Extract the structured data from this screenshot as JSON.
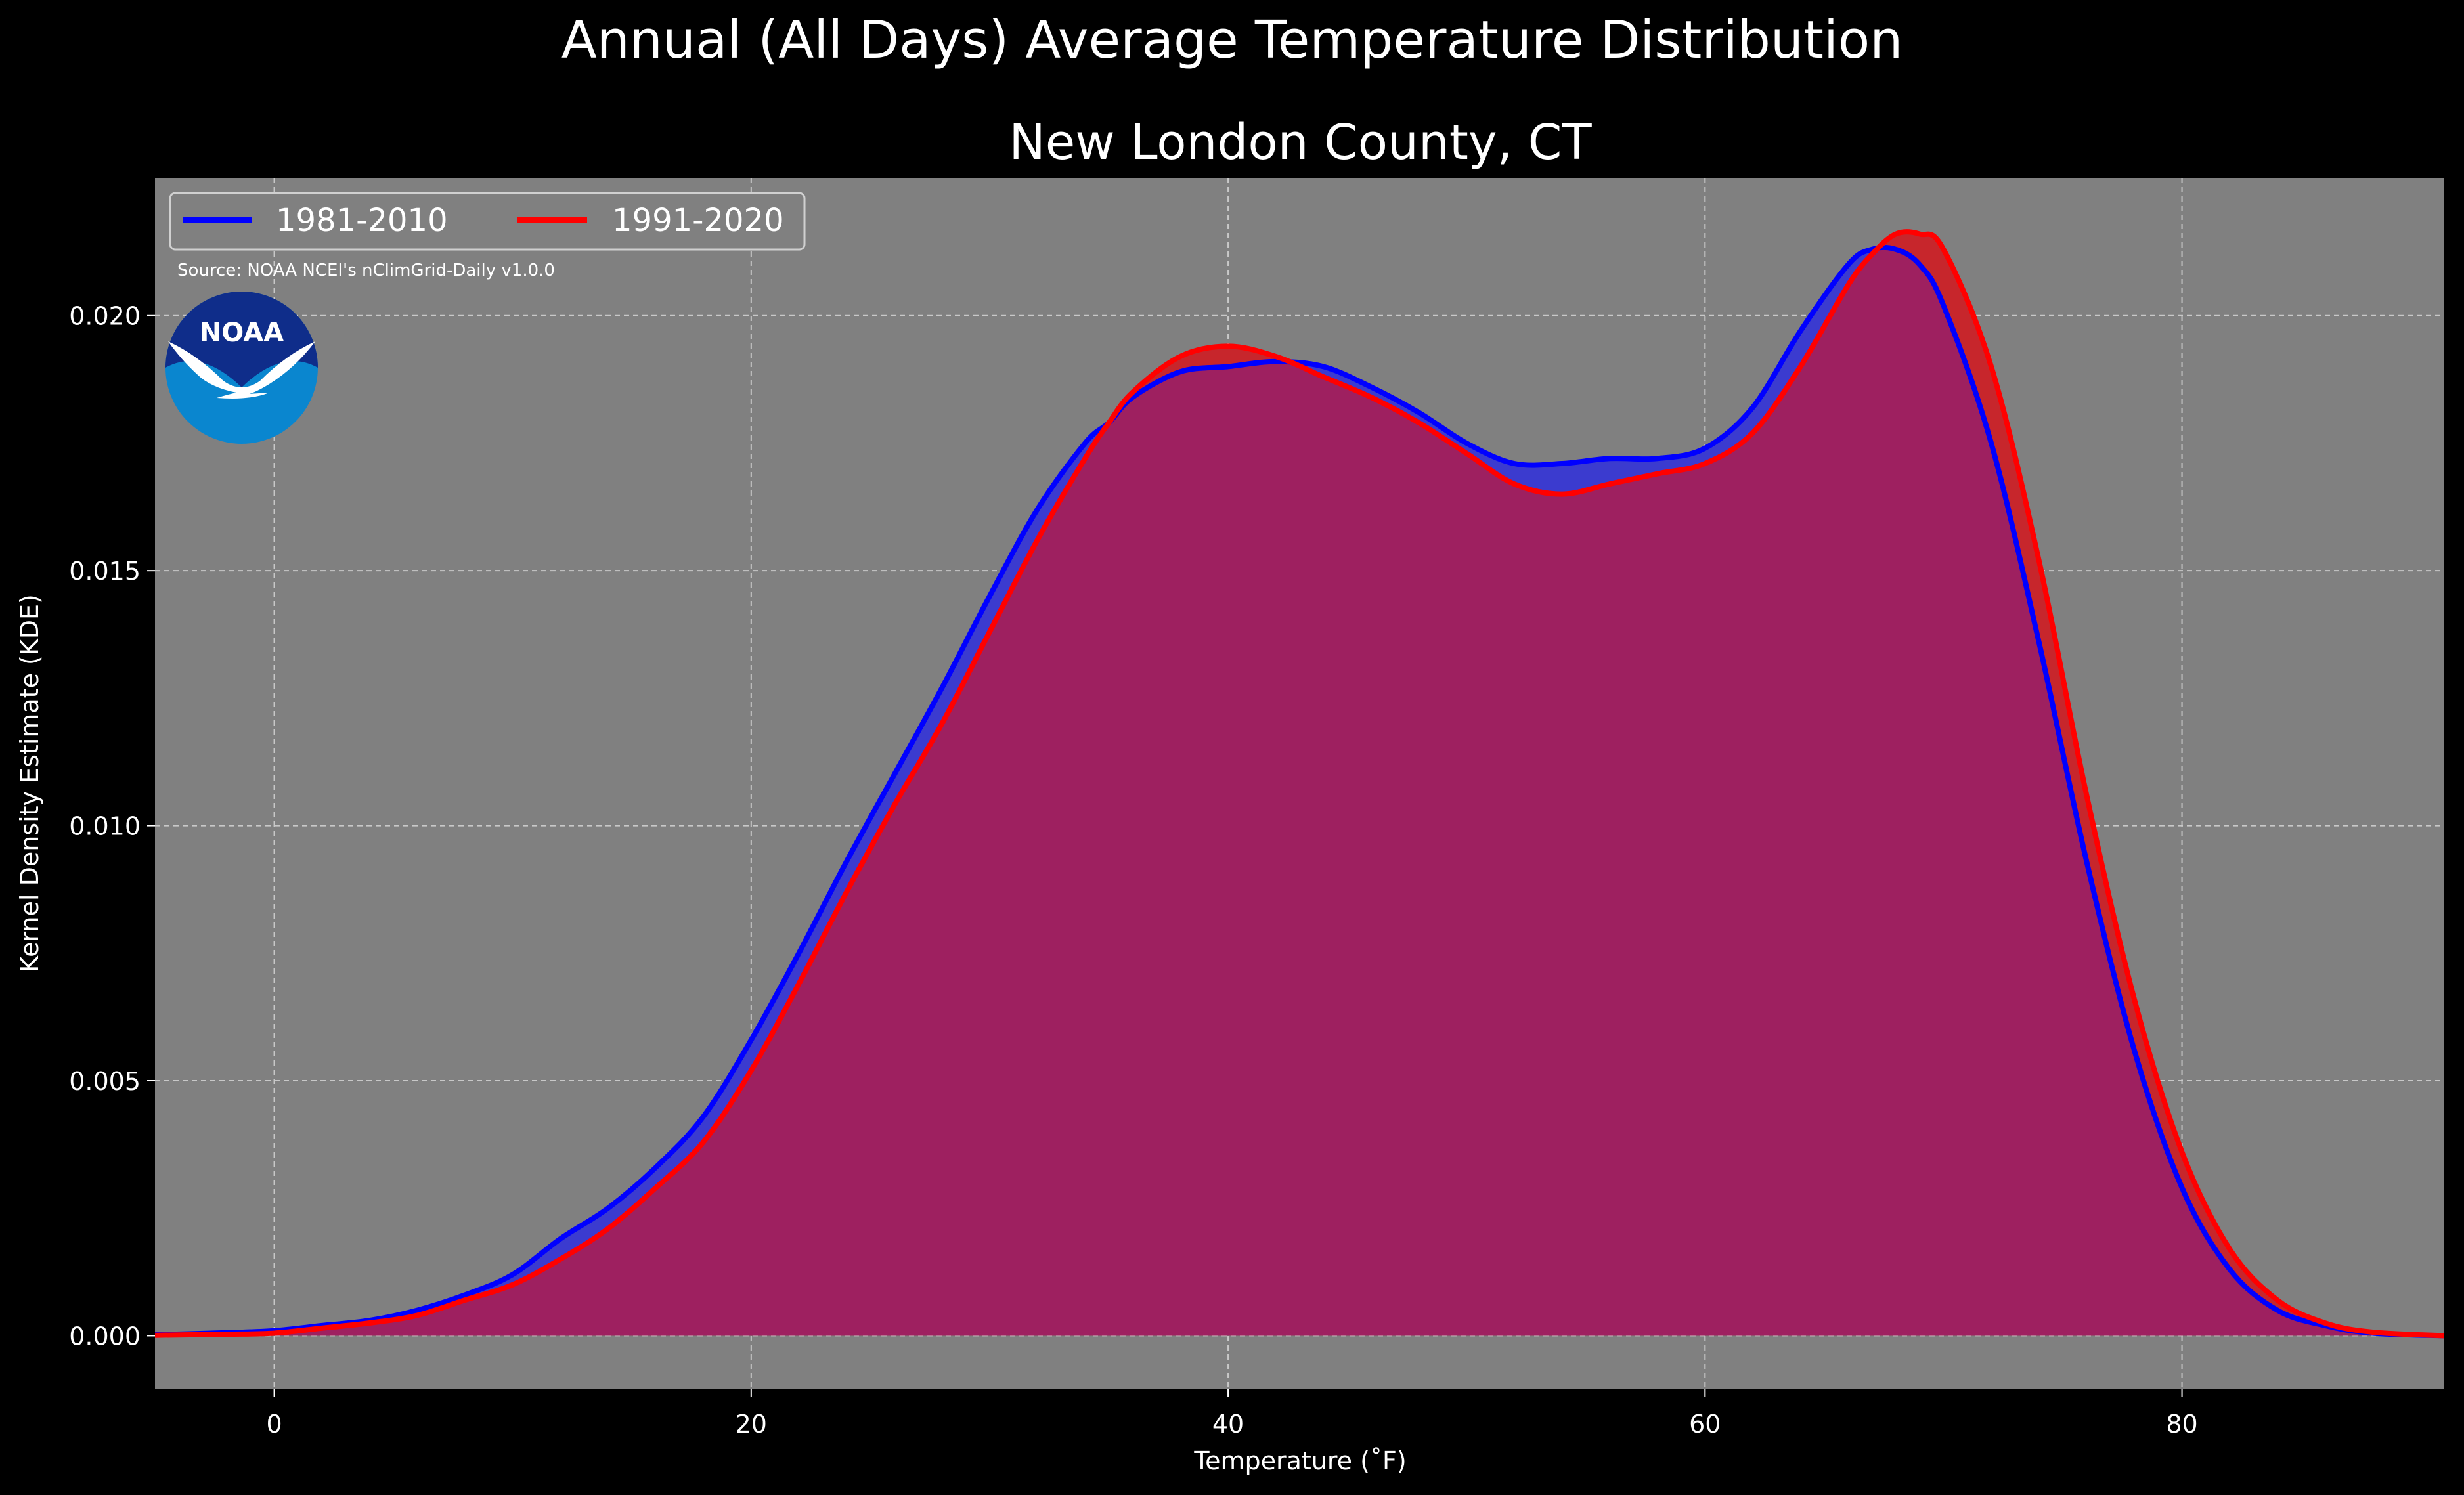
{
  "chart_data": {
    "type": "area",
    "title": "Annual (All Days) Average Temperature Distribution",
    "subtitle": "New London County, CT",
    "xlabel": "Temperature ($^\\circ$F)",
    "xlabel_display": "Temperature (˚F)",
    "ylabel": "Kernel Density Estimate (KDE)",
    "xlim": [
      -5,
      91
    ],
    "ylim": [
      -0.00105,
      0.0227
    ],
    "x_ticks": [
      0,
      20,
      40,
      60,
      80
    ],
    "x_tick_labels": [
      "0",
      "20",
      "40",
      "60",
      "80"
    ],
    "y_ticks": [
      0.0,
      0.005,
      0.01,
      0.015,
      0.02
    ],
    "y_tick_labels": [
      "0.000",
      "0.005",
      "0.010",
      "0.015",
      "0.020"
    ],
    "grid": true,
    "legend_position": "top-left",
    "annotation": "Source: NOAA NCEI's nClimGrid-Daily v1.0.0",
    "logo_text": "NOAA",
    "series": [
      {
        "name": "1981-2010",
        "color": "#0000ff",
        "fill_color": "#3b3bcf",
        "x": [
          -5,
          -2,
          0,
          2,
          4,
          6,
          8,
          10,
          12,
          14,
          16,
          18,
          20,
          22,
          24,
          26,
          28,
          30,
          32,
          34,
          35,
          36,
          38,
          40,
          42,
          44,
          46,
          48,
          50,
          52,
          54,
          56,
          58,
          60,
          62,
          64,
          66,
          67,
          68,
          69,
          70,
          72,
          74,
          76,
          78,
          80,
          82,
          84,
          86,
          88,
          91
        ],
        "y": [
          2e-05,
          6e-05,
          0.0001,
          0.0002,
          0.0003,
          0.0005,
          0.0008,
          0.0012,
          0.0019,
          0.0025,
          0.0033,
          0.0043,
          0.0058,
          0.0075,
          0.0093,
          0.011,
          0.0127,
          0.0145,
          0.0162,
          0.0175,
          0.0179,
          0.0184,
          0.0189,
          0.019,
          0.0191,
          0.019,
          0.0186,
          0.0181,
          0.0175,
          0.0171,
          0.0171,
          0.0172,
          0.0172,
          0.0174,
          0.0182,
          0.0197,
          0.021,
          0.0213,
          0.0213,
          0.021,
          0.0202,
          0.0175,
          0.0136,
          0.0093,
          0.0056,
          0.0029,
          0.0013,
          0.0005,
          0.0002,
          5e-05,
          0.0
        ]
      },
      {
        "name": "1991-2020",
        "color": "#ff0000",
        "fill_color": "#c7262c",
        "x": [
          -5,
          -2,
          0,
          2,
          4,
          6,
          8,
          10,
          12,
          14,
          16,
          18,
          20,
          22,
          24,
          26,
          28,
          30,
          32,
          34,
          35,
          36,
          38,
          40,
          42,
          44,
          46,
          48,
          50,
          52,
          54,
          56,
          58,
          60,
          62,
          64,
          66,
          67,
          68,
          69,
          70,
          72,
          74,
          76,
          78,
          80,
          82,
          84,
          86,
          88,
          91
        ],
        "y": [
          1e-05,
          3e-05,
          5e-05,
          0.00015,
          0.00025,
          0.0004,
          0.0007,
          0.001,
          0.0015,
          0.0021,
          0.0029,
          0.0038,
          0.0052,
          0.0069,
          0.0087,
          0.0104,
          0.012,
          0.0138,
          0.0156,
          0.0172,
          0.0179,
          0.0185,
          0.0192,
          0.0194,
          0.0192,
          0.0188,
          0.0184,
          0.0179,
          0.0173,
          0.0167,
          0.0165,
          0.0167,
          0.0169,
          0.0171,
          0.0177,
          0.019,
          0.0206,
          0.0212,
          0.0216,
          0.0216,
          0.0213,
          0.019,
          0.0152,
          0.0106,
          0.0066,
          0.0036,
          0.0017,
          0.0007,
          0.00025,
          7e-05,
          0.0
        ]
      }
    ]
  },
  "colors": {
    "figure_background": "#000000",
    "axes_background": "#808080",
    "grid": "#c8c8c8",
    "overlap_fill": "#9e2060",
    "text": "#ffffff",
    "logo_dark": "#0f2d8a",
    "logo_light": "#0a86cf"
  }
}
